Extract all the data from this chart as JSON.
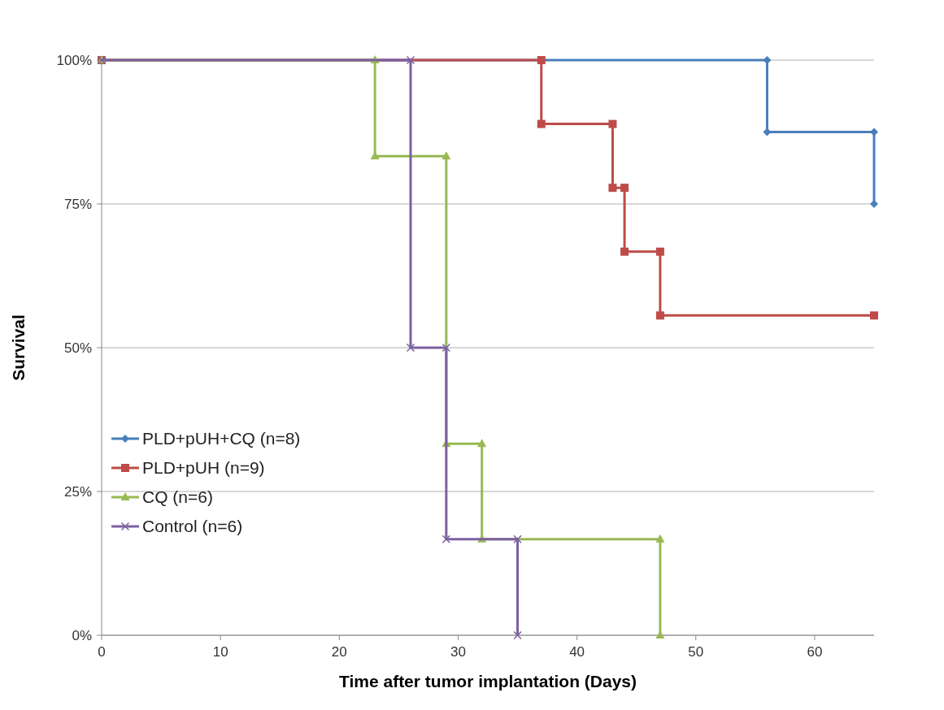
{
  "chart_data": {
    "type": "line",
    "xlabel": "Time after tumor implantation (Days)",
    "ylabel": "Survival",
    "xlim": [
      0,
      65
    ],
    "xticks": [
      0,
      10,
      20,
      30,
      40,
      50,
      60
    ],
    "ylim": [
      0,
      100
    ],
    "yticks": [
      {
        "value": 0,
        "label": "0%"
      },
      {
        "value": 25,
        "label": "25%"
      },
      {
        "value": 50,
        "label": "50%"
      },
      {
        "value": 75,
        "label": "75%"
      },
      {
        "value": 100,
        "label": "100%"
      }
    ],
    "grid": "y",
    "legend": "left",
    "series": [
      {
        "name": "PLD+pUH+CQ (n=8)",
        "color": "#4a7ebb",
        "marker": "diamond",
        "x": [
          0,
          56,
          56,
          65,
          65
        ],
        "values": [
          100,
          100,
          87.5,
          87.5,
          75
        ]
      },
      {
        "name": "PLD+pUH (n=9)",
        "color": "#be4b48",
        "marker": "square",
        "x": [
          0,
          37,
          37,
          43,
          43,
          44,
          44,
          47,
          47,
          65
        ],
        "values": [
          100,
          100,
          88.9,
          88.9,
          77.8,
          77.8,
          66.7,
          66.7,
          55.6,
          55.6
        ]
      },
      {
        "name": "CQ (n=6)",
        "color": "#98b954",
        "marker": "triangle",
        "x": [
          0,
          23,
          23,
          29,
          29,
          32,
          32,
          47,
          47
        ],
        "values": [
          100,
          100,
          83.3,
          83.3,
          33.3,
          33.3,
          16.7,
          16.7,
          0
        ]
      },
      {
        "name": "Control (n=6)",
        "color": "#7d60a0",
        "marker": "cross",
        "x": [
          0,
          26,
          26,
          29,
          29,
          35,
          35
        ],
        "values": [
          100,
          100,
          50,
          50,
          16.7,
          16.7,
          0
        ]
      }
    ]
  }
}
